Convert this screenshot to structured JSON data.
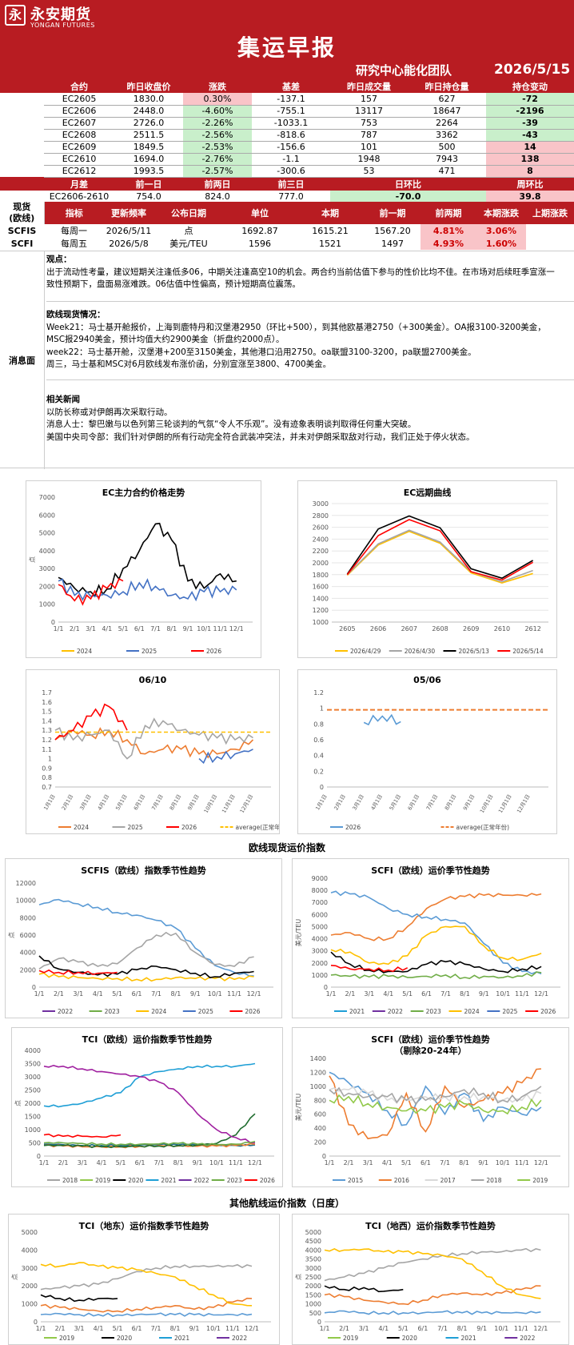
{
  "header": {
    "logo_char": "永",
    "logo_cn": "永安期货",
    "logo_en": "YONGAN FUTURES",
    "title": "集运早报",
    "team": "研究中心能化团队",
    "date": "2026/5/15"
  },
  "contracts": {
    "headers": [
      "合约",
      "昨日收盘价",
      "涨跌",
      "基差",
      "昨日成交量",
      "昨日持仓量",
      "持仓变动"
    ],
    "rows": [
      [
        "EC2605",
        "1830.0",
        "0.30%",
        "-137.1",
        "157",
        "627",
        "-72"
      ],
      [
        "EC2606",
        "2448.0",
        "-4.60%",
        "-755.1",
        "13117",
        "18647",
        "-2196"
      ],
      [
        "EC2607",
        "2726.0",
        "-2.26%",
        "-1033.1",
        "753",
        "2264",
        "-39"
      ],
      [
        "EC2608",
        "2511.5",
        "-2.56%",
        "-818.6",
        "787",
        "3362",
        "-43"
      ],
      [
        "EC2609",
        "1849.5",
        "-2.53%",
        "-156.6",
        "101",
        "500",
        "14"
      ],
      [
        "EC2610",
        "1694.0",
        "-2.76%",
        "-1.1",
        "1948",
        "7943",
        "138"
      ],
      [
        "EC2612",
        "1993.5",
        "-2.57%",
        "-300.6",
        "53",
        "471",
        "8"
      ]
    ]
  },
  "spread": {
    "headers": [
      "月差",
      "前一日",
      "前两日",
      "前三日",
      "日环比",
      "周环比"
    ],
    "row": [
      "EC2606-2610",
      "754.0",
      "824.0",
      "777.0",
      "-70.0",
      "39.8"
    ]
  },
  "spot": {
    "side_label_1": "现货",
    "side_label_2": "(欧线)",
    "headers": [
      "指标",
      "更新频率",
      "公布日期",
      "单位",
      "本期",
      "前一期",
      "前两期",
      "本期涨跌",
      "上期涨跌"
    ],
    "rows": [
      [
        "SCFIS",
        "每周一",
        "2026/5/11",
        "点",
        "1692.87",
        "1615.21",
        "1567.20",
        "4.81%",
        "3.06%"
      ],
      [
        "SCFI",
        "每周五",
        "2026/5/8",
        "美元/TEU",
        "1596",
        "1521",
        "1497",
        "4.93%",
        "1.60%"
      ]
    ]
  },
  "news": {
    "label": "消息面",
    "view_h": "观点：",
    "view_1": "出于流动性考量，建议短期关注逢低多06，中期关注逢高空10的机会。两合约当前估值下参与的性价比均不佳。在市场对后续旺季宣涨一",
    "view_2": "致性预期下，盘面易涨难跌。06估值中性偏高，预计短期高位震荡。",
    "spot_h": "欧线现货情况：",
    "spot_1": "Week21：马士基开舱报价，上海到鹿特丹和汉堡港2950（环比+500），到其他欧基港2750（+300美金）。OA报3100-3200美金，",
    "spot_2": "MSC报2940美金，预计均值大约2900美金（折盘约2000点）。",
    "spot_3": "week22：马士基开舱，汉堡港+200至3150美金，其他港口沿用2750。oa联盟3100-3200，pa联盟2700美金。",
    "spot_4": "周三，马士基和MSC对6月欧线发布涨价函，分别宣涨至3800、4700美金。",
    "rel_h": "相关新闻",
    "rel_1": "以防长称或对伊朗再次采取行动。",
    "rel_2": "消息人士：黎巴嫩与以色列第三轮谈判的气氛“令人不乐观”。没有迹象表明谈判取得任何重大突破。",
    "rel_3": "美国中央司令部：我们针对伊朗的所有行动完全符合武装冲突法，并未对伊朗采取敌对行动，我们正处于停火状态。"
  },
  "sections": {
    "spot_index": "欧线现货运价指数",
    "other_index": "其他航线运价指数（日度）"
  },
  "charts": {
    "c1": {
      "title": "EC主力合约价格走势",
      "ylabel": "点",
      "yticks": [
        "7000",
        "6000",
        "5000",
        "4000",
        "3000",
        "2000",
        "1000",
        "0"
      ],
      "xticks": [
        "1/1",
        "2/1",
        "3/1",
        "4/1",
        "5/1",
        "6/1",
        "7/1",
        "8/1",
        "9/1",
        "10/1",
        "11/1",
        "12/1"
      ],
      "legend": [
        "2024",
        "2025",
        "2026"
      ]
    },
    "c2": {
      "title": "EC远期曲线",
      "yticks": [
        "3000",
        "2800",
        "2600",
        "2400",
        "2200",
        "2000",
        "1800",
        "1600",
        "1400",
        "1200",
        "1000"
      ],
      "xticks": [
        "2605",
        "2606",
        "2607",
        "2608",
        "2609",
        "2610",
        "2612"
      ],
      "legend": [
        "2026/4/29",
        "2026/4/30",
        "2026/5/13",
        "2026/5/14"
      ]
    },
    "c3": {
      "title": "06/10",
      "yticks": [
        "1.7",
        "1.6",
        "1.5",
        "1.4",
        "1.3",
        "1.2",
        "1.1",
        "1",
        "0.9",
        "0.8",
        "0.7"
      ],
      "xticks": [
        "1月1日",
        "2月1日",
        "3月1日",
        "4月1日",
        "5月1日",
        "6月1日",
        "7月1日",
        "8月1日",
        "9月1日",
        "10月1日",
        "11月1日",
        "12月1日"
      ],
      "legend": [
        "2024",
        "2025",
        "2026",
        "average(正常年份)"
      ]
    },
    "c4": {
      "title": "05/06",
      "yticks": [
        "1.2",
        "1",
        "0.8",
        "0.6",
        "0.4",
        "0.2",
        "0"
      ],
      "xticks": [
        "1月1日",
        "2月1日",
        "3月1日",
        "4月1日",
        "5月1日",
        "6月1日",
        "7月1日",
        "8月1日",
        "9月1日",
        "10月1日",
        "11月1日",
        "12月1日"
      ],
      "legend": [
        "2026",
        "average(正常年份)"
      ]
    },
    "c5": {
      "title": "SCFIS（欧线）指数季节性趋势",
      "ylabel": "点",
      "yticks": [
        "12000",
        "10000",
        "8000",
        "6000",
        "4000",
        "2000",
        "0"
      ],
      "xticks": [
        "1/1",
        "2/1",
        "3/1",
        "4/1",
        "5/1",
        "6/1",
        "7/1",
        "8/1",
        "9/1",
        "10/1",
        "11/1",
        "12/1"
      ],
      "legend": [
        "2022",
        "2023",
        "2024",
        "2025",
        "2026"
      ]
    },
    "c6": {
      "title": "SCFI（欧线）运价季节性趋势",
      "ylabel": "美元/TEU",
      "yticks": [
        "9000",
        "8000",
        "7000",
        "6000",
        "5000",
        "4000",
        "3000",
        "2000",
        "1000",
        "0"
      ],
      "xticks": [
        "1/1",
        "2/1",
        "3/1",
        "4/1",
        "5/1",
        "6/1",
        "7/1",
        "8/1",
        "9/1",
        "10/1",
        "11/1",
        "12/1"
      ],
      "legend": [
        "2021",
        "2022",
        "2023",
        "2024",
        "2025",
        "2026"
      ]
    },
    "c7": {
      "title": "TCI（欧线）运价指数季节性趋势",
      "ylabel": "点",
      "yticks": [
        "4000",
        "3500",
        "3000",
        "2500",
        "2000",
        "1500",
        "1000",
        "500",
        "0"
      ],
      "xticks": [
        "1/1",
        "2/1",
        "3/1",
        "4/1",
        "5/1",
        "6/1",
        "7/1",
        "8/1",
        "9/1",
        "10/1",
        "11/1",
        "12/1"
      ],
      "legend": [
        "2018",
        "2019",
        "2020",
        "2021",
        "2022",
        "2023",
        "2026"
      ]
    },
    "c8": {
      "title": "SCFI（欧线）运价季节性趋势",
      "title2": "（剔除20-24年）",
      "ylabel": "美元/TEU",
      "yticks": [
        "1400",
        "1200",
        "1000",
        "800",
        "600",
        "400",
        "200",
        "0"
      ],
      "xticks": [
        "1/1",
        "2/1",
        "3/1",
        "4/1",
        "5/1",
        "6/1",
        "7/1",
        "8/1",
        "9/1",
        "10/1",
        "11/1",
        "12/1"
      ],
      "legend": [
        "2015",
        "2016",
        "2017",
        "2018",
        "2019"
      ]
    },
    "c9": {
      "title": "TCI（地东）运价指数季节性趋势",
      "ylabel": "点",
      "yticks": [
        "5000",
        "4000",
        "3000",
        "2000",
        "1000",
        "0"
      ],
      "xticks": [
        "1/1",
        "2/1",
        "3/1",
        "4/1",
        "5/1",
        "6/1",
        "7/1",
        "8/1",
        "9/1",
        "10/1",
        "11/1",
        "12/1"
      ],
      "legend": [
        "2019",
        "2020",
        "2021",
        "2022"
      ]
    },
    "c10": {
      "title": "TCI（地西）运价指数季节性趋势",
      "ylabel": "点",
      "yticks": [
        "5000",
        "4500",
        "4000",
        "3500",
        "3000",
        "2500",
        "2000",
        "1500",
        "1000",
        "500",
        "0"
      ],
      "xticks": [
        "1/1",
        "2/1",
        "3/1",
        "4/1",
        "5/1",
        "6/1",
        "7/1",
        "8/1",
        "9/1",
        "10/1",
        "11/1",
        "12/1"
      ],
      "legend": [
        "2019",
        "2020",
        "2021",
        "2022"
      ]
    }
  },
  "chart_data": [
    {
      "type": "line",
      "title": "EC远期曲线",
      "categories": [
        "2605",
        "2606",
        "2607",
        "2608",
        "2609",
        "2610",
        "2612"
      ],
      "ylim": [
        1000,
        3000
      ],
      "series": [
        {
          "name": "2026/4/29",
          "values": [
            1790,
            2300,
            2530,
            2330,
            1830,
            1660,
            1820
          ]
        },
        {
          "name": "2026/4/30",
          "values": [
            1800,
            2320,
            2550,
            2350,
            1850,
            1680,
            1870
          ]
        },
        {
          "name": "2026/5/13",
          "values": [
            1810,
            2570,
            2790,
            2590,
            1900,
            1740,
            2040
          ]
        },
        {
          "name": "2026/5/14",
          "values": [
            1800,
            2460,
            2730,
            2540,
            1850,
            1710,
            2010
          ]
        }
      ]
    },
    {
      "type": "line",
      "title": "EC主力合约价格走势",
      "xlabel": "",
      "ylabel": "点",
      "ylim": [
        0,
        7000
      ],
      "x": [
        "1/1",
        "2/1",
        "3/1",
        "4/1",
        "5/1",
        "6/1",
        "7/1",
        "8/1",
        "9/1",
        "10/1",
        "11/1",
        "12/1"
      ],
      "series": [
        {
          "name": "2024",
          "values": [
            2500,
            1900,
            1700,
            1850,
            3000,
            4000,
            5500,
            4600,
            2300,
            1900,
            2700,
            2300
          ]
        },
        {
          "name": "2025",
          "values": [
            2300,
            1500,
            1450,
            1500,
            1700,
            2200,
            2000,
            1500,
            1300,
            1700,
            1700,
            1800
          ]
        },
        {
          "name": "2026",
          "values": [
            2100,
            1200,
            1300,
            1900,
            2300,
            null,
            null,
            null,
            null,
            null,
            null,
            null
          ]
        }
      ]
    },
    {
      "type": "line",
      "title": "SCFIS（欧线）指数季节性趋势",
      "ylabel": "点",
      "ylim": [
        0,
        12000
      ],
      "x": [
        "1/1",
        "2/1",
        "3/1",
        "4/1",
        "5/1",
        "6/1",
        "7/1",
        "8/1",
        "9/1",
        "10/1",
        "11/1",
        "12/1"
      ],
      "series": [
        {
          "name": "2022",
          "values": [
            9500,
            10100,
            9600,
            9200,
            8600,
            8300,
            7700,
            6800,
            4500,
            2500,
            1700,
            1300
          ]
        },
        {
          "name": "2023",
          "values": [
            1500,
            1200,
            1100,
            1000,
            1000,
            900,
            900,
            1100,
            1000,
            1000,
            900,
            1200
          ]
        },
        {
          "name": "2024",
          "values": [
            2100,
            3300,
            2900,
            2400,
            2700,
            4500,
            6000,
            6200,
            4000,
            2600,
            2400,
            3500
          ]
        },
        {
          "name": "2025",
          "values": [
            3600,
            2100,
            1700,
            1400,
            1500,
            2000,
            2400,
            2000,
            1600,
            1200,
            1600,
            1800
          ]
        },
        {
          "name": "2026",
          "values": [
            1900,
            1700,
            1700,
            1600,
            1700,
            null,
            null,
            null,
            null,
            null,
            null,
            null
          ]
        }
      ]
    },
    {
      "type": "line",
      "title": "SCFI（欧线）运价季节性趋势",
      "ylabel": "美元/TEU",
      "ylim": [
        0,
        9000
      ],
      "x": [
        "1/1",
        "2/1",
        "3/1",
        "4/1",
        "5/1",
        "6/1",
        "7/1",
        "8/1",
        "9/1",
        "10/1",
        "11/1",
        "12/1"
      ],
      "series": [
        {
          "name": "2021",
          "values": [
            4300,
            4500,
            4000,
            4000,
            5000,
            6500,
            7300,
            7500,
            7600,
            7600,
            7600,
            7700
          ]
        },
        {
          "name": "2022",
          "values": [
            7800,
            7700,
            7400,
            6500,
            6000,
            5800,
            5600,
            5300,
            3600,
            2000,
            1300,
            1100
          ]
        },
        {
          "name": "2023",
          "values": [
            1000,
            900,
            850,
            900,
            800,
            900,
            1000,
            800,
            900,
            800,
            900,
            1200
          ]
        },
        {
          "name": "2024",
          "values": [
            3100,
            2900,
            2000,
            1900,
            2600,
            4300,
            5000,
            5000,
            3400,
            2400,
            2300,
            2800
          ]
        },
        {
          "name": "2025",
          "values": [
            2900,
            1900,
            1400,
            1300,
            1300,
            1900,
            2100,
            1900,
            1500,
            1300,
            1500,
            1700
          ]
        },
        {
          "name": "2026",
          "values": [
            1800,
            1500,
            1500,
            1400,
            1600,
            null,
            null,
            null,
            null,
            null,
            null,
            null
          ]
        }
      ]
    },
    {
      "type": "line",
      "title": "TCI（欧线）运价指数季节性趋势",
      "ylabel": "点",
      "ylim": [
        0,
        4000
      ],
      "x": [
        "1/1",
        "2/1",
        "3/1",
        "4/1",
        "5/1",
        "6/1",
        "7/1",
        "8/1",
        "9/1",
        "10/1",
        "11/1",
        "12/1"
      ],
      "series": [
        {
          "name": "2018",
          "values": [
            450,
            430,
            400,
            400,
            400,
            420,
            430,
            420,
            400,
            400,
            400,
            420
          ]
        },
        {
          "name": "2019",
          "values": [
            400,
            380,
            350,
            350,
            350,
            370,
            400,
            380,
            370,
            380,
            400,
            450
          ]
        },
        {
          "name": "2020",
          "values": [
            400,
            400,
            380,
            350,
            350,
            380,
            380,
            400,
            420,
            480,
            800,
            1600
          ]
        },
        {
          "name": "2021",
          "values": [
            1900,
            1900,
            2000,
            2200,
            2400,
            3000,
            3200,
            3300,
            3400,
            3400,
            3400,
            3500
          ]
        },
        {
          "name": "2022",
          "values": [
            3400,
            3400,
            3300,
            3200,
            3100,
            3000,
            2800,
            2400,
            1600,
            1000,
            700,
            500
          ]
        },
        {
          "name": "2023",
          "values": [
            500,
            500,
            480,
            460,
            450,
            450,
            460,
            480,
            450,
            430,
            450,
            550
          ]
        },
        {
          "name": "2026",
          "values": [
            800,
            750,
            750,
            720,
            800,
            null,
            null,
            null,
            null,
            null,
            null,
            null
          ]
        }
      ]
    }
  ]
}
